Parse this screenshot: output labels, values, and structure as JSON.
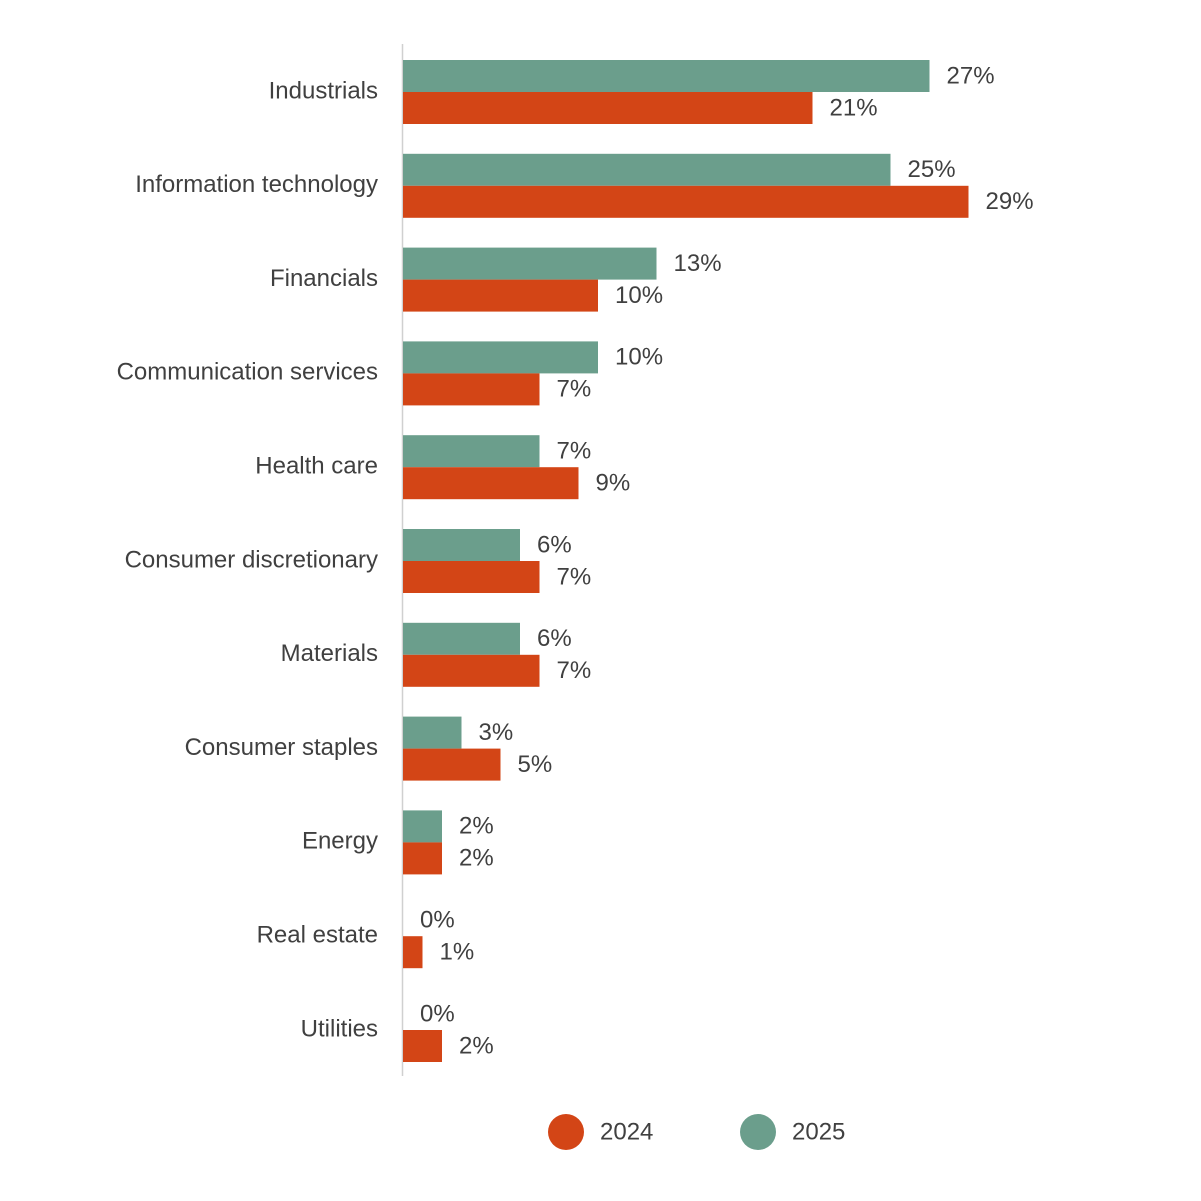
{
  "chart_data": {
    "type": "bar",
    "orientation": "horizontal",
    "title": "",
    "xlabel": "",
    "ylabel": "",
    "xlim": [
      0,
      31
    ],
    "grid": false,
    "legend_position": "bottom",
    "categories": [
      "Industrials",
      "Information technology",
      "Financials",
      "Communication services",
      "Health care",
      "Consumer discretionary",
      "Materials",
      "Consumer staples",
      "Energy",
      "Real estate",
      "Utilities"
    ],
    "series": [
      {
        "name": "2025",
        "color": "#6b9e8c",
        "values": [
          27,
          25,
          13,
          10,
          7,
          6,
          6,
          3,
          2,
          0,
          0
        ],
        "labels": [
          "27%",
          "25%",
          "13%",
          "10%",
          "7%",
          "6%",
          "6%",
          "3%",
          "2%",
          "0%",
          "0%"
        ]
      },
      {
        "name": "2024",
        "color": "#d34516",
        "values": [
          21,
          29,
          10,
          7,
          9,
          7,
          7,
          5,
          2,
          1,
          2
        ],
        "labels": [
          "21%",
          "29%",
          "10%",
          "7%",
          "9%",
          "7%",
          "7%",
          "5%",
          "2%",
          "1%",
          "2%"
        ]
      }
    ],
    "legend": [
      {
        "name": "2024",
        "color": "#d34516"
      },
      {
        "name": "2025",
        "color": "#6b9e8c"
      }
    ]
  }
}
